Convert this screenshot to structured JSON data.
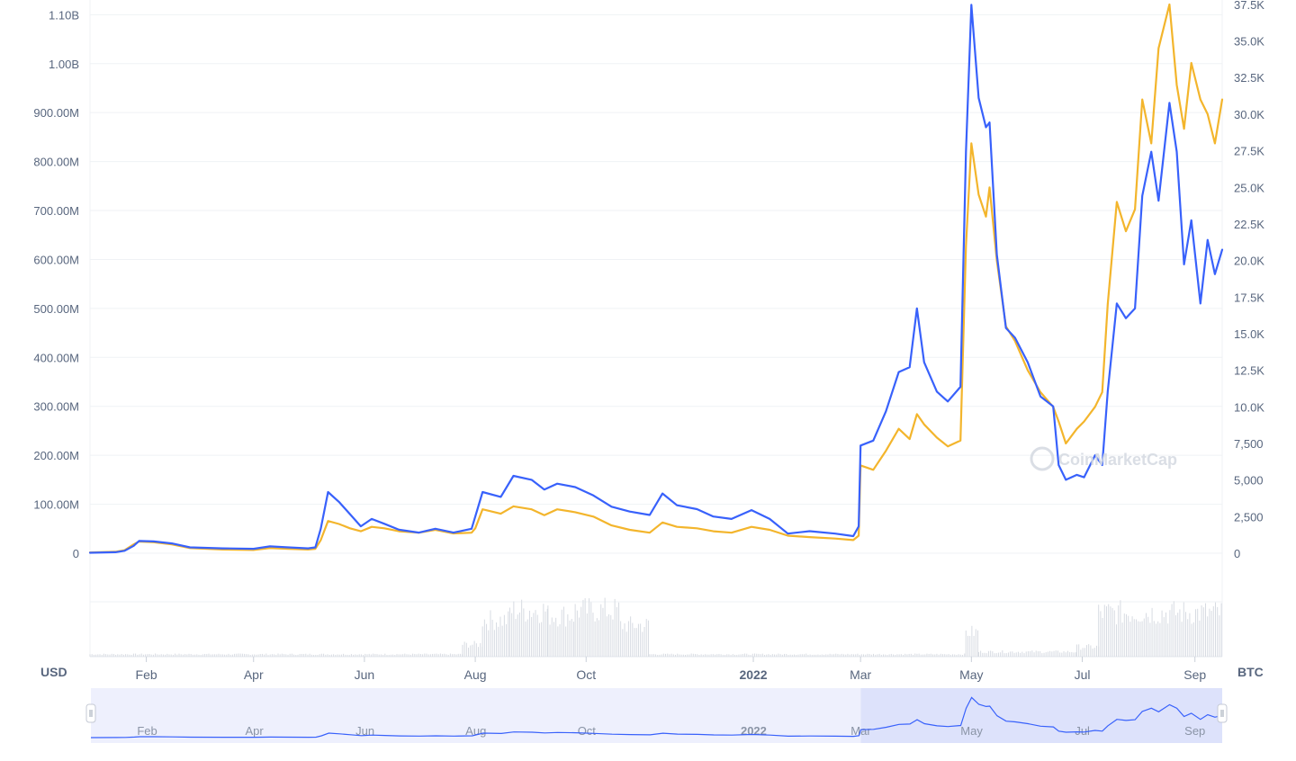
{
  "colors": {
    "usd_line": "#3861fb",
    "btc_line": "#f3b52c",
    "grid": "#eff2f5",
    "tick_text": "#58667e",
    "volume": "#d7dbe2",
    "navigator_bg": "#eef0fd",
    "navigator_selected": "#dde2fb"
  },
  "axis_units": {
    "left": "USD",
    "right": "BTC"
  },
  "watermark": "CoinMarketCap",
  "chart_data": {
    "type": "line",
    "x_start": "2021-01-01",
    "x_end": "2022-09-16",
    "left_axis": {
      "label": "USD",
      "ylim": [
        0,
        1130000000
      ],
      "ticks": [
        {
          "v": 0,
          "t": "0"
        },
        {
          "v": 100000000,
          "t": "100.00M"
        },
        {
          "v": 200000000,
          "t": "200.00M"
        },
        {
          "v": 300000000,
          "t": "300.00M"
        },
        {
          "v": 400000000,
          "t": "400.00M"
        },
        {
          "v": 500000000,
          "t": "500.00M"
        },
        {
          "v": 600000000,
          "t": "600.00M"
        },
        {
          "v": 700000000,
          "t": "700.00M"
        },
        {
          "v": 800000000,
          "t": "800.00M"
        },
        {
          "v": 900000000,
          "t": "900.00M"
        },
        {
          "v": 1000000000,
          "t": "1.00B"
        },
        {
          "v": 1100000000,
          "t": "1.10B"
        }
      ]
    },
    "right_axis": {
      "label": "BTC",
      "ylim": [
        0,
        37800
      ],
      "ticks": [
        {
          "v": 0,
          "t": "0"
        },
        {
          "v": 2500,
          "t": "2,500"
        },
        {
          "v": 5000,
          "t": "5,000"
        },
        {
          "v": 7500,
          "t": "7,500"
        },
        {
          "v": 10000,
          "t": "10.0K"
        },
        {
          "v": 12500,
          "t": "12.5K"
        },
        {
          "v": 15000,
          "t": "15.0K"
        },
        {
          "v": 17500,
          "t": "17.5K"
        },
        {
          "v": 20000,
          "t": "20.0K"
        },
        {
          "v": 22500,
          "t": "22.5K"
        },
        {
          "v": 25000,
          "t": "25.0K"
        },
        {
          "v": 27500,
          "t": "27.5K"
        },
        {
          "v": 30000,
          "t": "30.0K"
        },
        {
          "v": 32500,
          "t": "32.5K"
        },
        {
          "v": 35000,
          "t": "35.0K"
        },
        {
          "v": 37500,
          "t": "37.5K"
        }
      ]
    },
    "x_ticks": [
      {
        "date": "2021-02-01",
        "t": "Feb",
        "bold": false
      },
      {
        "date": "2021-04-01",
        "t": "Apr",
        "bold": false
      },
      {
        "date": "2021-06-01",
        "t": "Jun",
        "bold": false
      },
      {
        "date": "2021-08-01",
        "t": "Aug",
        "bold": false
      },
      {
        "date": "2021-10-01",
        "t": "Oct",
        "bold": false
      },
      {
        "date": "2022-01-01",
        "t": "2022",
        "bold": true
      },
      {
        "date": "2022-03-01",
        "t": "Mar",
        "bold": false
      },
      {
        "date": "2022-05-01",
        "t": "May",
        "bold": false
      },
      {
        "date": "2022-07-01",
        "t": "Jul",
        "bold": false
      },
      {
        "date": "2022-09-01",
        "t": "Sep",
        "bold": false
      }
    ],
    "series": [
      {
        "axis": "left",
        "color": "#3861fb",
        "points": [
          [
            "2021-01-01",
            1000000
          ],
          [
            "2021-01-15",
            2000000
          ],
          [
            "2021-01-20",
            5000000
          ],
          [
            "2021-01-25",
            15000000
          ],
          [
            "2021-01-28",
            25000000
          ],
          [
            "2021-02-05",
            24000000
          ],
          [
            "2021-02-15",
            20000000
          ],
          [
            "2021-02-25",
            12000000
          ],
          [
            "2021-03-15",
            10000000
          ],
          [
            "2021-04-01",
            9000000
          ],
          [
            "2021-04-10",
            14000000
          ],
          [
            "2021-04-20",
            12000000
          ],
          [
            "2021-05-01",
            10000000
          ],
          [
            "2021-05-05",
            12000000
          ],
          [
            "2021-05-08",
            50000000
          ],
          [
            "2021-05-12",
            125000000
          ],
          [
            "2021-05-18",
            105000000
          ],
          [
            "2021-05-24",
            80000000
          ],
          [
            "2021-05-30",
            55000000
          ],
          [
            "2021-06-05",
            70000000
          ],
          [
            "2021-06-12",
            60000000
          ],
          [
            "2021-06-20",
            48000000
          ],
          [
            "2021-07-01",
            42000000
          ],
          [
            "2021-07-10",
            50000000
          ],
          [
            "2021-07-20",
            42000000
          ],
          [
            "2021-07-30",
            50000000
          ],
          [
            "2021-08-01",
            75000000
          ],
          [
            "2021-08-05",
            125000000
          ],
          [
            "2021-08-15",
            115000000
          ],
          [
            "2021-08-22",
            158000000
          ],
          [
            "2021-09-01",
            150000000
          ],
          [
            "2021-09-08",
            130000000
          ],
          [
            "2021-09-15",
            142000000
          ],
          [
            "2021-09-25",
            135000000
          ],
          [
            "2021-10-05",
            118000000
          ],
          [
            "2021-10-15",
            95000000
          ],
          [
            "2021-10-25",
            85000000
          ],
          [
            "2021-11-05",
            78000000
          ],
          [
            "2021-11-12",
            122000000
          ],
          [
            "2021-11-20",
            98000000
          ],
          [
            "2021-12-01",
            90000000
          ],
          [
            "2021-12-10",
            75000000
          ],
          [
            "2021-12-20",
            70000000
          ],
          [
            "2021-12-31",
            88000000
          ],
          [
            "2022-01-10",
            70000000
          ],
          [
            "2022-01-20",
            40000000
          ],
          [
            "2022-02-01",
            45000000
          ],
          [
            "2022-02-15",
            40000000
          ],
          [
            "2022-02-25",
            35000000
          ],
          [
            "2022-02-28",
            55000000
          ],
          [
            "2022-03-01",
            220000000
          ],
          [
            "2022-03-08",
            230000000
          ],
          [
            "2022-03-15",
            290000000
          ],
          [
            "2022-03-22",
            370000000
          ],
          [
            "2022-03-28",
            380000000
          ],
          [
            "2022-04-01",
            500000000
          ],
          [
            "2022-04-05",
            390000000
          ],
          [
            "2022-04-12",
            330000000
          ],
          [
            "2022-04-18",
            310000000
          ],
          [
            "2022-04-25",
            340000000
          ],
          [
            "2022-04-28",
            820000000
          ],
          [
            "2022-05-01",
            1120000000
          ],
          [
            "2022-05-05",
            930000000
          ],
          [
            "2022-05-09",
            870000000
          ],
          [
            "2022-05-11",
            880000000
          ],
          [
            "2022-05-15",
            610000000
          ],
          [
            "2022-05-20",
            460000000
          ],
          [
            "2022-05-25",
            440000000
          ],
          [
            "2022-06-01",
            390000000
          ],
          [
            "2022-06-08",
            320000000
          ],
          [
            "2022-06-15",
            300000000
          ],
          [
            "2022-06-18",
            180000000
          ],
          [
            "2022-06-22",
            150000000
          ],
          [
            "2022-06-28",
            160000000
          ],
          [
            "2022-07-02",
            155000000
          ],
          [
            "2022-07-08",
            200000000
          ],
          [
            "2022-07-12",
            180000000
          ],
          [
            "2022-07-15",
            330000000
          ],
          [
            "2022-07-20",
            510000000
          ],
          [
            "2022-07-25",
            480000000
          ],
          [
            "2022-07-30",
            500000000
          ],
          [
            "2022-08-03",
            730000000
          ],
          [
            "2022-08-08",
            820000000
          ],
          [
            "2022-08-12",
            720000000
          ],
          [
            "2022-08-18",
            920000000
          ],
          [
            "2022-08-22",
            820000000
          ],
          [
            "2022-08-26",
            590000000
          ],
          [
            "2022-08-30",
            680000000
          ],
          [
            "2022-09-04",
            510000000
          ],
          [
            "2022-09-08",
            640000000
          ],
          [
            "2022-09-12",
            570000000
          ],
          [
            "2022-09-16",
            620000000
          ]
        ]
      },
      {
        "axis": "right",
        "color": "#f3b52c",
        "points": [
          [
            "2021-01-01",
            50
          ],
          [
            "2021-01-15",
            100
          ],
          [
            "2021-01-20",
            200
          ],
          [
            "2021-01-25",
            600
          ],
          [
            "2021-01-28",
            800
          ],
          [
            "2021-02-05",
            750
          ],
          [
            "2021-02-15",
            600
          ],
          [
            "2021-02-25",
            350
          ],
          [
            "2021-03-15",
            250
          ],
          [
            "2021-04-01",
            220
          ],
          [
            "2021-04-10",
            350
          ],
          [
            "2021-04-20",
            300
          ],
          [
            "2021-05-01",
            250
          ],
          [
            "2021-05-05",
            300
          ],
          [
            "2021-05-08",
            900
          ],
          [
            "2021-05-12",
            2200
          ],
          [
            "2021-05-18",
            2000
          ],
          [
            "2021-05-24",
            1700
          ],
          [
            "2021-05-30",
            1500
          ],
          [
            "2021-06-05",
            1800
          ],
          [
            "2021-06-12",
            1700
          ],
          [
            "2021-06-20",
            1500
          ],
          [
            "2021-07-01",
            1400
          ],
          [
            "2021-07-10",
            1600
          ],
          [
            "2021-07-20",
            1350
          ],
          [
            "2021-07-30",
            1400
          ],
          [
            "2021-08-01",
            1700
          ],
          [
            "2021-08-05",
            3000
          ],
          [
            "2021-08-15",
            2700
          ],
          [
            "2021-08-22",
            3200
          ],
          [
            "2021-09-01",
            3000
          ],
          [
            "2021-09-08",
            2600
          ],
          [
            "2021-09-15",
            3000
          ],
          [
            "2021-09-25",
            2800
          ],
          [
            "2021-10-05",
            2500
          ],
          [
            "2021-10-15",
            1900
          ],
          [
            "2021-10-25",
            1600
          ],
          [
            "2021-11-05",
            1400
          ],
          [
            "2021-11-12",
            2100
          ],
          [
            "2021-11-20",
            1800
          ],
          [
            "2021-12-01",
            1700
          ],
          [
            "2021-12-10",
            1500
          ],
          [
            "2021-12-20",
            1400
          ],
          [
            "2021-12-31",
            1800
          ],
          [
            "2022-01-10",
            1600
          ],
          [
            "2022-01-20",
            1200
          ],
          [
            "2022-02-01",
            1100
          ],
          [
            "2022-02-15",
            1000
          ],
          [
            "2022-02-25",
            900
          ],
          [
            "2022-02-28",
            1200
          ],
          [
            "2022-03-01",
            6000
          ],
          [
            "2022-03-08",
            5700
          ],
          [
            "2022-03-15",
            7000
          ],
          [
            "2022-03-22",
            8500
          ],
          [
            "2022-03-28",
            7800
          ],
          [
            "2022-04-01",
            9500
          ],
          [
            "2022-04-05",
            8800
          ],
          [
            "2022-04-12",
            7900
          ],
          [
            "2022-04-18",
            7300
          ],
          [
            "2022-04-25",
            7700
          ],
          [
            "2022-04-28",
            21000
          ],
          [
            "2022-05-01",
            28000
          ],
          [
            "2022-05-05",
            24500
          ],
          [
            "2022-05-09",
            23000
          ],
          [
            "2022-05-11",
            25000
          ],
          [
            "2022-05-15",
            20000
          ],
          [
            "2022-05-20",
            15500
          ],
          [
            "2022-05-25",
            14500
          ],
          [
            "2022-06-01",
            12500
          ],
          [
            "2022-06-08",
            11000
          ],
          [
            "2022-06-15",
            10000
          ],
          [
            "2022-06-18",
            9000
          ],
          [
            "2022-06-22",
            7500
          ],
          [
            "2022-06-28",
            8500
          ],
          [
            "2022-07-02",
            9000
          ],
          [
            "2022-07-08",
            10000
          ],
          [
            "2022-07-12",
            11000
          ],
          [
            "2022-07-15",
            17000
          ],
          [
            "2022-07-20",
            24000
          ],
          [
            "2022-07-25",
            22000
          ],
          [
            "2022-07-30",
            23500
          ],
          [
            "2022-08-03",
            31000
          ],
          [
            "2022-08-08",
            28000
          ],
          [
            "2022-08-12",
            34500
          ],
          [
            "2022-08-18",
            37500
          ],
          [
            "2022-08-22",
            32000
          ],
          [
            "2022-08-26",
            29000
          ],
          [
            "2022-08-30",
            33500
          ],
          [
            "2022-09-04",
            31000
          ],
          [
            "2022-09-08",
            30000
          ],
          [
            "2022-09-12",
            28000
          ],
          [
            "2022-09-16",
            31000
          ]
        ]
      }
    ],
    "volume_bars": [
      {
        "range": [
          "2021-01-01",
          "2021-07-25"
        ],
        "level": 0.05
      },
      {
        "range": [
          "2021-07-25",
          "2021-08-05"
        ],
        "level": 0.25
      },
      {
        "range": [
          "2021-08-05",
          "2021-08-20"
        ],
        "level": 0.75
      },
      {
        "range": [
          "2021-08-20",
          "2021-09-10"
        ],
        "level": 0.95
      },
      {
        "range": [
          "2021-09-10",
          "2021-09-25"
        ],
        "level": 0.85
      },
      {
        "range": [
          "2021-09-25",
          "2021-10-20"
        ],
        "level": 0.95
      },
      {
        "range": [
          "2021-10-20",
          "2021-11-05"
        ],
        "level": 0.65
      },
      {
        "range": [
          "2021-11-05",
          "2022-04-28"
        ],
        "level": 0.05
      },
      {
        "range": [
          "2022-04-28",
          "2022-05-05"
        ],
        "level": 0.5
      },
      {
        "range": [
          "2022-05-05",
          "2022-06-28"
        ],
        "level": 0.1
      },
      {
        "range": [
          "2022-06-28",
          "2022-07-10"
        ],
        "level": 0.2
      },
      {
        "range": [
          "2022-07-10",
          "2022-09-16"
        ],
        "level": 0.9
      }
    ]
  },
  "navigator": {
    "labels": [
      {
        "date": "2021-02-01",
        "t": "Feb",
        "bold": false
      },
      {
        "date": "2021-04-01",
        "t": "Apr",
        "bold": false
      },
      {
        "date": "2021-06-01",
        "t": "Jun",
        "bold": false
      },
      {
        "date": "2021-08-01",
        "t": "Aug",
        "bold": false
      },
      {
        "date": "2021-10-01",
        "t": "Oct",
        "bold": false
      },
      {
        "date": "2022-01-01",
        "t": "2022",
        "bold": true
      },
      {
        "date": "2022-03-01",
        "t": "Mar",
        "bold": false
      },
      {
        "date": "2022-05-01",
        "t": "May",
        "bold": false
      },
      {
        "date": "2022-07-01",
        "t": "Jul",
        "bold": false
      },
      {
        "date": "2022-09-01",
        "t": "Sep",
        "bold": false
      }
    ],
    "selected_from": "2022-03-01",
    "selected_to": "2022-09-16"
  }
}
